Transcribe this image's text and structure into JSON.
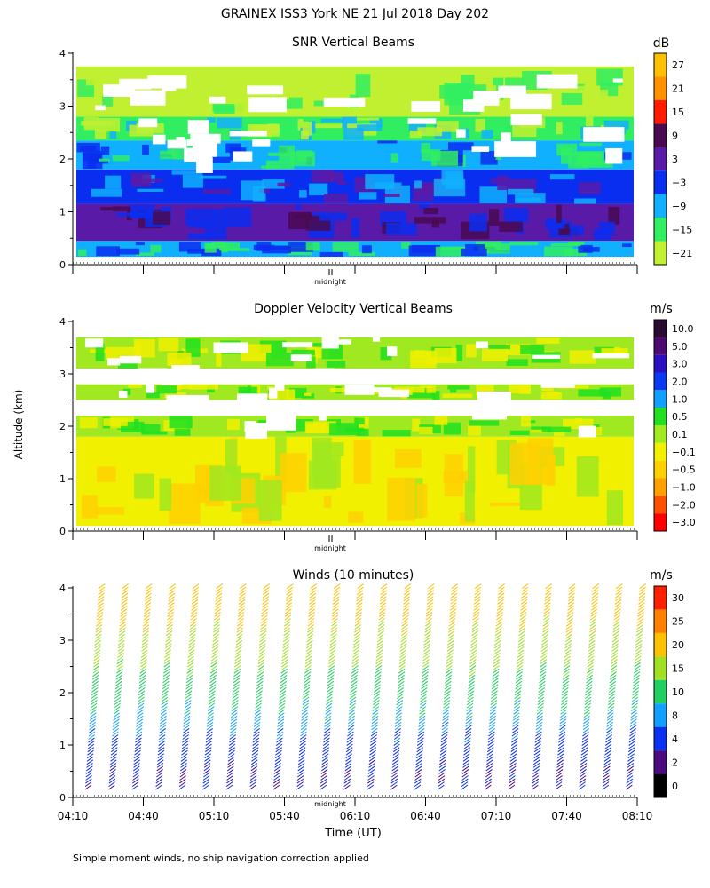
{
  "figure": {
    "title": "GRAINEX ISS3 York NE  21 Jul 2018 Day 202",
    "ylabel": "Altitude (km)",
    "xlabel": "Time (UT)",
    "midnight_label": "midnight",
    "footnote": "Simple moment winds, no ship navigation correction applied"
  },
  "chart_data": [
    {
      "type": "heatmap",
      "title": "SNR Vertical Beams",
      "ylim": [
        0,
        4
      ],
      "yticks": [
        0,
        1,
        2,
        3,
        4
      ],
      "xlim": [
        "04:10",
        "08:10"
      ],
      "colorbar": {
        "unit": "dB",
        "labels": [
          "27",
          "21",
          "15",
          "9",
          "3",
          "−3",
          "−9",
          "−15",
          "−21"
        ],
        "colors": [
          "#ffc000",
          "#ff9000",
          "#ff1a00",
          "#4a0a50",
          "#5a1aa8",
          "#0a2ef0",
          "#10b0ff",
          "#30ee60",
          "#c0f030"
        ]
      },
      "bands_km": [
        {
          "from": 0.15,
          "to": 0.45,
          "level": "-9"
        },
        {
          "from": 0.45,
          "to": 1.15,
          "level": "3"
        },
        {
          "from": 1.15,
          "to": 1.8,
          "level": "-3"
        },
        {
          "from": 1.8,
          "to": 2.35,
          "level": "-9"
        },
        {
          "from": 2.35,
          "to": 2.8,
          "level": "-15"
        },
        {
          "from": 2.8,
          "to": 3.75,
          "level": "-21"
        }
      ]
    },
    {
      "type": "heatmap",
      "title": "Doppler Velocity Vertical Beams",
      "ylim": [
        0,
        4
      ],
      "yticks": [
        0,
        1,
        2,
        3,
        4
      ],
      "xlim": [
        "04:10",
        "08:10"
      ],
      "colorbar": {
        "unit": "m/s",
        "labels": [
          "10.0",
          "5.0",
          "3.0",
          "2.0",
          "1.0",
          "0.5",
          "0.1",
          "−0.1",
          "−0.5",
          "−1.0",
          "−2.0",
          "−3.0"
        ],
        "colors": [
          "#2a0a30",
          "#4a0a70",
          "#2a10c0",
          "#0a3af0",
          "#10a0ff",
          "#20e020",
          "#a0e820",
          "#f0f000",
          "#ffd000",
          "#ffa000",
          "#ff5000",
          "#ff0000"
        ]
      },
      "bands_km": [
        {
          "from": 0.1,
          "to": 1.8,
          "level": "-0.1"
        },
        {
          "from": 1.8,
          "to": 2.2,
          "level": "0.1"
        },
        {
          "from": 2.5,
          "to": 2.8,
          "level": "0.1"
        },
        {
          "from": 3.1,
          "to": 3.7,
          "level": "0.1"
        }
      ]
    },
    {
      "type": "wind-barbs",
      "title": "Winds (10 minutes)",
      "ylim": [
        0,
        4
      ],
      "yticks": [
        0,
        1,
        2,
        3,
        4
      ],
      "x": [
        "04:10",
        "04:40",
        "05:10",
        "05:40",
        "06:10",
        "06:40",
        "07:10",
        "07:40",
        "08:10"
      ],
      "profile_interval_minutes": 10,
      "colorbar": {
        "unit": "m/s",
        "labels": [
          "30",
          "25",
          "20",
          "15",
          "10",
          "8",
          "4",
          "2",
          "0"
        ],
        "colors": [
          "#ff2000",
          "#ff8000",
          "#ffc000",
          "#a0e020",
          "#20d060",
          "#10a0ff",
          "#0a30f0",
          "#4a0a80",
          "#000000"
        ]
      },
      "speed_profile_km_ms": [
        {
          "alt": 0.5,
          "speed": 4
        },
        {
          "alt": 1.2,
          "speed": 8
        },
        {
          "alt": 2.0,
          "speed": 12
        },
        {
          "alt": 2.7,
          "speed": 17
        },
        {
          "alt": 3.4,
          "speed": 21
        },
        {
          "alt": 4.0,
          "speed": 24
        }
      ]
    }
  ]
}
